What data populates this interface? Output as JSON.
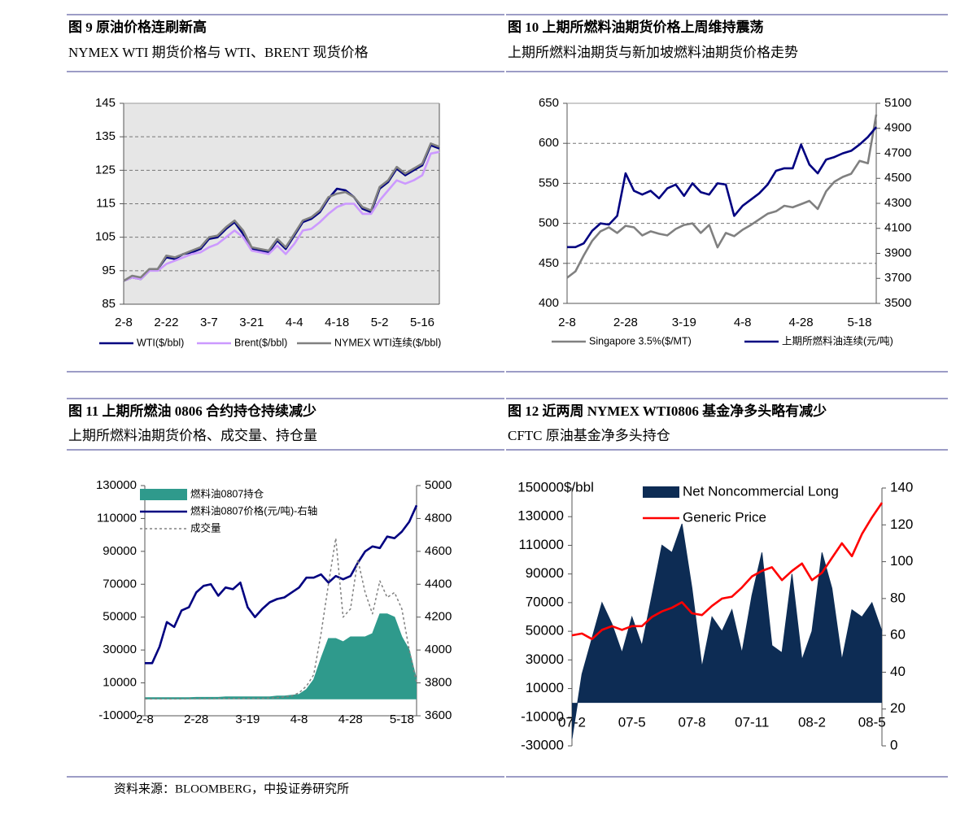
{
  "chart_data": [
    {
      "type": "line",
      "title": "图 9  原油价格连刷新高",
      "subtitle": "NYMEX WTI 期货价格与 WTI、BRENT 现货价格",
      "categories": [
        "2-8",
        null,
        null,
        null,
        null,
        "2-22",
        null,
        null,
        null,
        null,
        "3-7",
        null,
        null,
        null,
        null,
        "3-21",
        null,
        null,
        null,
        null,
        "4-4",
        null,
        null,
        null,
        null,
        "4-18",
        null,
        null,
        null,
        null,
        "5-2",
        null,
        null,
        null,
        null,
        "5-16",
        null,
        null
      ],
      "series": [
        {
          "name": "WTI($/bbl)",
          "color": "#000080",
          "values": [
            92,
            93,
            92.5,
            95,
            95.5,
            99,
            98.5,
            100,
            100.5,
            101.5,
            104.5,
            105,
            107.5,
            109.5,
            106,
            101.5,
            101,
            100.5,
            104,
            101.5,
            105.5,
            109.5,
            110.5,
            112.5,
            116.5,
            119.5,
            119,
            117,
            113.5,
            112.5,
            119.5,
            121.5,
            125.5,
            123.5,
            125,
            126.5,
            132.5,
            131.5
          ]
        },
        {
          "name": "Brent($/bbl)",
          "color": "#cc99ff",
          "values": [
            92,
            93,
            92.5,
            95,
            95,
            97,
            98,
            99,
            100,
            100.5,
            102,
            103,
            105,
            107,
            105,
            101,
            100.5,
            100,
            102.5,
            100,
            103,
            107,
            107.5,
            109.5,
            112,
            114,
            115,
            115,
            112,
            112,
            116,
            119,
            122,
            121,
            122,
            123.5,
            130,
            130.5
          ]
        },
        {
          "name": "NYMEX WTI连续($/bbl)",
          "color": "#808080",
          "values": [
            92,
            93.5,
            93,
            95.5,
            95.5,
            99.5,
            99,
            100,
            101,
            102,
            105,
            105.5,
            108,
            110,
            107,
            102,
            101.5,
            101,
            104.5,
            102,
            106,
            110,
            111,
            113,
            117,
            118,
            118.5,
            117,
            114,
            113,
            120,
            122,
            126,
            124,
            125.5,
            127,
            133,
            132
          ]
        }
      ],
      "ylim": [
        85,
        145
      ],
      "yticks": [
        85,
        95,
        105,
        115,
        125,
        135,
        145
      ],
      "grid": true,
      "plot_background": "#e6e6e6",
      "legend": "bottom"
    },
    {
      "type": "line",
      "title": "图 10  上期所燃料油期货价格上周维持震荡",
      "subtitle": "上期所燃料油期货与新加坡燃料油期货价格走势",
      "categories": [
        "2-8",
        null,
        null,
        null,
        null,
        null,
        null,
        "2-28",
        null,
        null,
        null,
        null,
        null,
        null,
        "3-19",
        null,
        null,
        null,
        null,
        null,
        null,
        "4-8",
        null,
        null,
        null,
        null,
        null,
        null,
        "4-28",
        null,
        null,
        null,
        null,
        null,
        null,
        "5-18",
        null,
        null
      ],
      "series": [
        {
          "name": "Singapore 3.5%($/MT)",
          "color": "#808080",
          "values": [
            432,
            440,
            460,
            478,
            490,
            495,
            488,
            497,
            495,
            485,
            490,
            487,
            485,
            493,
            498,
            500,
            488,
            498,
            470,
            488,
            484,
            492,
            498,
            505,
            512,
            515,
            522,
            520,
            524,
            528,
            518,
            540,
            552,
            558,
            562,
            578,
            575,
            636
          ]
        },
        {
          "name": "上期所燃料油连续(元/吨)",
          "color": "#000080",
          "axis": "y2",
          "values": [
            3950,
            3950,
            3980,
            4080,
            4140,
            4130,
            4200,
            4540,
            4400,
            4370,
            4400,
            4340,
            4420,
            4450,
            4360,
            4460,
            4390,
            4370,
            4460,
            4450,
            4200,
            4280,
            4330,
            4380,
            4450,
            4560,
            4580,
            4580,
            4770,
            4610,
            4540,
            4650,
            4670,
            4700,
            4720,
            4770,
            4830,
            4910
          ]
        }
      ],
      "ylim": [
        400,
        650
      ],
      "yticks": [
        400,
        450,
        500,
        550,
        600,
        650
      ],
      "y2lim": [
        3500,
        5100
      ],
      "y2ticks": [
        3500,
        3700,
        3900,
        4100,
        4300,
        4500,
        4700,
        4900,
        5100
      ],
      "grid": true,
      "legend": "bottom"
    },
    {
      "type": "line",
      "title": "图 11  上期所燃油 0806 合约持仓持续减少",
      "subtitle": "上期所燃料油期货价格、成交量、持仓量",
      "categories": [
        "2-8",
        null,
        null,
        null,
        null,
        null,
        null,
        "2-28",
        null,
        null,
        null,
        null,
        null,
        null,
        "3-19",
        null,
        null,
        null,
        null,
        null,
        null,
        "4-8",
        null,
        null,
        null,
        null,
        null,
        null,
        "4-28",
        null,
        null,
        null,
        null,
        null,
        null,
        "5-18",
        null,
        null
      ],
      "series": [
        {
          "name": "燃料油0807持仓",
          "color": "#2f9a8c",
          "type": "area",
          "values": [
            1000,
            1000,
            1000,
            1000,
            1000,
            1000,
            1000,
            1200,
            1200,
            1200,
            1200,
            1500,
            1500,
            1500,
            1500,
            1500,
            1500,
            1500,
            2000,
            2000,
            2500,
            3000,
            6000,
            12000,
            25000,
            37000,
            37000,
            35000,
            38000,
            38000,
            38000,
            40000,
            52000,
            52000,
            50000,
            38000,
            30000,
            12000
          ]
        },
        {
          "name": "燃料油0807价格(元/吨)-右轴",
          "color": "#000080",
          "axis": "y2",
          "values": [
            3920,
            3920,
            4020,
            4170,
            4140,
            4240,
            4260,
            4350,
            4390,
            4400,
            4330,
            4380,
            4370,
            4410,
            4260,
            4200,
            4250,
            4290,
            4310,
            4320,
            4350,
            4380,
            4440,
            4440,
            4460,
            4410,
            4450,
            4430,
            4450,
            4530,
            4600,
            4630,
            4620,
            4690,
            4680,
            4720,
            4780,
            4880
          ]
        },
        {
          "name": "成交量",
          "color": "#808080",
          "dash": true,
          "values": [
            300,
            300,
            300,
            300,
            300,
            300,
            400,
            400,
            400,
            400,
            500,
            500,
            500,
            500,
            600,
            600,
            600,
            800,
            1000,
            1500,
            2000,
            4000,
            8000,
            15000,
            40000,
            70000,
            98000,
            50000,
            55000,
            85000,
            65000,
            52000,
            72000,
            62000,
            65000,
            55000,
            30000,
            10000
          ]
        }
      ],
      "ylim": [
        -10000,
        130000
      ],
      "yticks": [
        -10000,
        10000,
        30000,
        50000,
        70000,
        90000,
        110000,
        130000
      ],
      "y2lim": [
        3600,
        5000
      ],
      "y2ticks": [
        3600,
        3800,
        4000,
        4200,
        4400,
        4600,
        4800,
        5000
      ],
      "grid": false,
      "legend": "upper left"
    },
    {
      "type": "line",
      "title": "图 12  近两周 NYMEX WTI0806 基金净多头略有减少",
      "subtitle": "CFTC  原油基金净多头持仓",
      "ylabel": "$/bbl",
      "categories": [
        "07-2",
        null,
        null,
        null,
        null,
        null,
        "07-5",
        null,
        null,
        null,
        null,
        null,
        "07-8",
        null,
        null,
        null,
        null,
        null,
        "07-11",
        null,
        null,
        null,
        null,
        null,
        "08-2",
        null,
        null,
        null,
        null,
        null,
        "08-5",
        null
      ],
      "series": [
        {
          "name": "Net Noncommercial Long",
          "color": "#0d2c54",
          "type": "area",
          "values": [
            -25000,
            20000,
            45000,
            70000,
            55000,
            35000,
            60000,
            40000,
            75000,
            110000,
            105000,
            125000,
            80000,
            25000,
            60000,
            50000,
            65000,
            35000,
            75000,
            105000,
            40000,
            35000,
            90000,
            30000,
            50000,
            105000,
            80000,
            30000,
            65000,
            60000,
            70000,
            50000
          ]
        },
        {
          "name": "Generic Price",
          "color": "#ff0000",
          "axis": "y2",
          "values": [
            60,
            61,
            58,
            63,
            65,
            63,
            65,
            65,
            70,
            73,
            75,
            78,
            72,
            71,
            76,
            80,
            81,
            86,
            92,
            95,
            97,
            90,
            95,
            99,
            90,
            94,
            102,
            110,
            103,
            115,
            124,
            132
          ]
        }
      ],
      "ylim": [
        -30000,
        150000
      ],
      "yticks": [
        -30000,
        -10000,
        10000,
        30000,
        50000,
        70000,
        90000,
        110000,
        130000,
        150000
      ],
      "y2lim": [
        0,
        140
      ],
      "y2ticks": [
        0,
        20,
        40,
        60,
        80,
        100,
        120,
        140
      ],
      "grid": false,
      "legend": "upper left"
    }
  ],
  "source": "资料来源：BLOOMBERG，中投证券研究所"
}
